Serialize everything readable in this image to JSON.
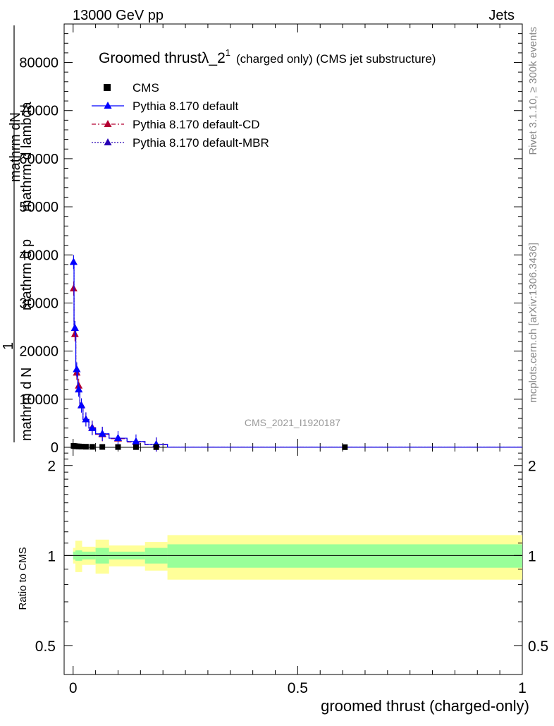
{
  "header": {
    "left": "13000 GeV pp",
    "right": "Jets"
  },
  "side_labels": {
    "rivet": "Rivet 3.1.10, ≥ 300k events",
    "mcplots": "mcplots.cern.ch [arXiv:1306.3436]"
  },
  "watermark": "CMS_2021_I1920187",
  "title": {
    "main": "Groomed thrust",
    "symbol": "λ_2",
    "sup": "1",
    "suffix": "(charged only) (CMS jet substructure)"
  },
  "ylabel": {
    "numerator_top": "mathrm dN",
    "denominator_top": "mathrm d p",
    "tail": "mathrm d lambda",
    "one": "1",
    "denominator_bottom": "mathrm d N",
    "tail2": "mathrm d p",
    "mid": "mathrm d"
  },
  "ratio_ylabel": "Ratio to CMS",
  "xlabel": "groomed thrust (charged-only)",
  "legend": [
    {
      "label": "CMS",
      "color": "#000000",
      "marker": "square",
      "dash": ""
    },
    {
      "label": "Pythia 8.170 default",
      "color": "#0000ff",
      "marker": "triangle",
      "dash": ""
    },
    {
      "label": "Pythia 8.170 default-CD",
      "color": "#b40032",
      "marker": "triangle",
      "dash": "6,3,2,3"
    },
    {
      "label": "Pythia 8.170 default-MBR",
      "color": "#2800b4",
      "marker": "triangle",
      "dash": "2,2"
    }
  ],
  "chart_data": {
    "type": "line",
    "xlim": [
      -0.02,
      1.0
    ],
    "ylim": [
      0,
      88000
    ],
    "ratio_ylim": [
      0.4,
      2.3
    ],
    "x_ticks": [
      "0",
      "0.5",
      "1"
    ],
    "x_tick_values": [
      0,
      0.5,
      1
    ],
    "y_ticks": [
      "0",
      "10000",
      "20000",
      "30000",
      "40000",
      "50000",
      "60000",
      "70000",
      "80000"
    ],
    "y_tick_values": [
      0,
      10000,
      20000,
      30000,
      40000,
      50000,
      60000,
      70000,
      80000
    ],
    "ratio_ticks": [
      "0.5",
      "1",
      "2"
    ],
    "ratio_tick_values": [
      0.5,
      1,
      2
    ],
    "bins": [
      {
        "lo": 0.0,
        "hi": 0.002,
        "x": 0.001,
        "cms": 300,
        "default": 38500,
        "cd": 33000,
        "mbr": 38500
      },
      {
        "lo": 0.002,
        "hi": 0.006,
        "x": 0.004,
        "cms": 250,
        "default": 24800,
        "cd": 23500,
        "mbr": 24800
      },
      {
        "lo": 0.006,
        "hi": 0.01,
        "x": 0.008,
        "cms": 200,
        "default": 16200,
        "cd": 15500,
        "mbr": 16200
      },
      {
        "lo": 0.01,
        "hi": 0.015,
        "x": 0.0125,
        "cms": 180,
        "default": 12000,
        "cd": 12800,
        "mbr": 12000
      },
      {
        "lo": 0.015,
        "hi": 0.022,
        "x": 0.0185,
        "cms": 150,
        "default": 8700,
        "cd": 8700,
        "mbr": 8700
      },
      {
        "lo": 0.022,
        "hi": 0.035,
        "x": 0.0285,
        "cms": 120,
        "default": 5800,
        "cd": 5800,
        "mbr": 5800
      },
      {
        "lo": 0.035,
        "hi": 0.05,
        "x": 0.0425,
        "cms": 100,
        "default": 4000,
        "cd": 4100,
        "mbr": 4000
      },
      {
        "lo": 0.05,
        "hi": 0.08,
        "x": 0.065,
        "cms": 80,
        "default": 2800,
        "cd": 2700,
        "mbr": 2800
      },
      {
        "lo": 0.08,
        "hi": 0.12,
        "x": 0.1,
        "cms": 60,
        "default": 1900,
        "cd": 1800,
        "mbr": 1900
      },
      {
        "lo": 0.12,
        "hi": 0.16,
        "x": 0.14,
        "cms": 50,
        "default": 1200,
        "cd": 1100,
        "mbr": 1200
      },
      {
        "lo": 0.16,
        "hi": 0.21,
        "x": 0.185,
        "cms": 40,
        "default": 600,
        "cd": 550,
        "mbr": 600
      },
      {
        "lo": 0.21,
        "hi": 1.0,
        "x": 0.605,
        "cms": 30,
        "default": 30,
        "cd": 30,
        "mbr": 30
      }
    ],
    "ratio_bands": [
      {
        "lo": 0.0,
        "hi": 0.005,
        "inner": 0.03,
        "outer": 0.06
      },
      {
        "lo": 0.005,
        "hi": 0.02,
        "inner": 0.04,
        "outer": 0.12
      },
      {
        "lo": 0.02,
        "hi": 0.05,
        "inner": 0.03,
        "outer": 0.07
      },
      {
        "lo": 0.05,
        "hi": 0.08,
        "inner": 0.06,
        "outer": 0.13
      },
      {
        "lo": 0.08,
        "hi": 0.16,
        "inner": 0.03,
        "outer": 0.08
      },
      {
        "lo": 0.16,
        "hi": 0.21,
        "inner": 0.06,
        "outer": 0.11
      },
      {
        "lo": 0.21,
        "hi": 1.0,
        "inner": 0.09,
        "outer": 0.17
      }
    ],
    "band_colors": {
      "inner": "#99ff99",
      "outer": "#ffff99"
    }
  }
}
